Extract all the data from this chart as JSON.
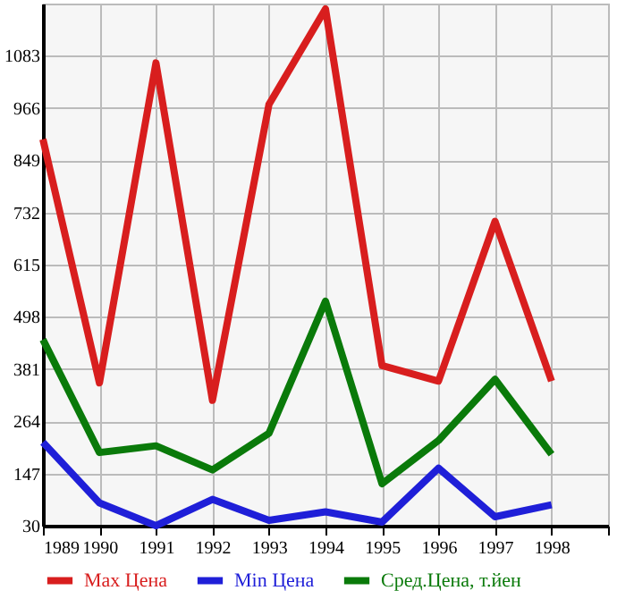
{
  "chart_data": {
    "type": "line",
    "x": [
      1989,
      1990,
      1991,
      1992,
      1993,
      1994,
      1995,
      1996,
      1997,
      1998
    ],
    "series": [
      {
        "name": "Max Цена",
        "color": "#d81e1e",
        "values": [
          896,
          350,
          1067,
          311,
          974,
          1188,
          389,
          354,
          712,
          354
        ]
      },
      {
        "name": "Min Цена",
        "color": "#1f1fd8",
        "values": [
          217,
          81,
          30,
          89,
          42,
          61,
          38,
          159,
          50,
          77
        ]
      },
      {
        "name": "Сред.Цена, т.йен",
        "color": "#0a7a0a",
        "values": [
          447,
          194,
          209,
          155,
          237,
          533,
          124,
          221,
          358,
          190
        ]
      }
    ],
    "xlim": [
      1989,
      1999
    ],
    "xticks": [
      1989,
      1990,
      1991,
      1992,
      1993,
      1994,
      1995,
      1996,
      1997,
      1998,
      {
        "value": 1999,
        "label": null
      }
    ],
    "ylim": [
      30,
      1200
    ],
    "yticks": [
      30,
      147,
      264,
      381,
      498,
      615,
      732,
      849,
      966,
      1083
    ],
    "grid": true,
    "legend": "bottom",
    "marker": "none",
    "line_style": "solid"
  }
}
